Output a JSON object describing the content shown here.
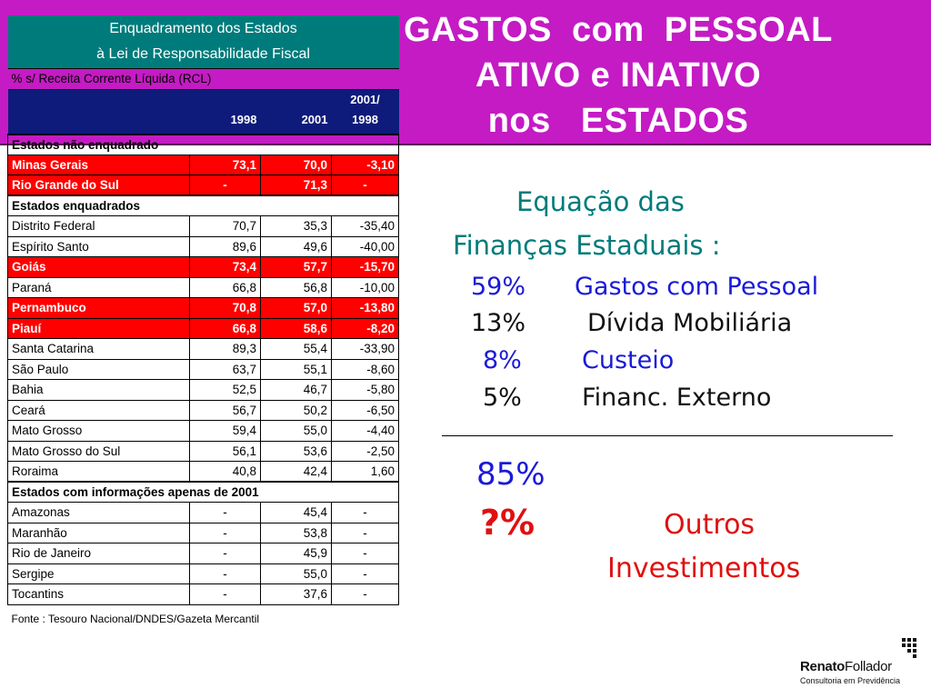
{
  "banner": {
    "line1": "GASTOS  com  PESSOAL",
    "line2": "ATIVO e INATIVO",
    "line3": "nos   ESTADOS"
  },
  "table": {
    "title1": "Enquadramento dos Estados",
    "title2": "à Lei de Responsabilidade Fiscal",
    "subtitle": "%  s/ Receita Corrente Líquida (RCL)",
    "col_1998": "1998",
    "col_2001": "2001",
    "col_var_top": "2001/",
    "col_var_bottom": "1998",
    "sections": [
      {
        "title": "Estados não enquadrado",
        "rows": [
          {
            "state": "Minas Gerais",
            "v1998": "73,1",
            "v2001": "70,0",
            "var": "-3,10",
            "highlight": true
          },
          {
            "state": "Rio Grande do Sul",
            "v1998": "-",
            "v2001": "71,3",
            "var": "-",
            "highlight": true
          }
        ]
      },
      {
        "title": "Estados enquadrados",
        "rows": [
          {
            "state": "Distrito Federal",
            "v1998": "70,7",
            "v2001": "35,3",
            "var": "-35,40",
            "highlight": false
          },
          {
            "state": "Espírito Santo",
            "v1998": "89,6",
            "v2001": "49,6",
            "var": "-40,00",
            "highlight": false
          },
          {
            "state": "Goiás",
            "v1998": "73,4",
            "v2001": "57,7",
            "var": "-15,70",
            "highlight": true
          },
          {
            "state": "Paraná",
            "v1998": "66,8",
            "v2001": "56,8",
            "var": "-10,00",
            "highlight": false
          },
          {
            "state": "Pernambuco",
            "v1998": "70,8",
            "v2001": "57,0",
            "var": "-13,80",
            "highlight": true
          },
          {
            "state": "Piauí",
            "v1998": "66,8",
            "v2001": "58,6",
            "var": "-8,20",
            "highlight": true
          },
          {
            "state": "Santa Catarina",
            "v1998": "89,3",
            "v2001": "55,4",
            "var": "-33,90",
            "highlight": false
          },
          {
            "state": "São Paulo",
            "v1998": "63,7",
            "v2001": "55,1",
            "var": "-8,60",
            "highlight": false
          },
          {
            "state": "Bahia",
            "v1998": "52,5",
            "v2001": "46,7",
            "var": "-5,80",
            "highlight": false
          },
          {
            "state": "Ceará",
            "v1998": "56,7",
            "v2001": "50,2",
            "var": "-6,50",
            "highlight": false
          },
          {
            "state": "Mato Grosso",
            "v1998": "59,4",
            "v2001": "55,0",
            "var": "-4,40",
            "highlight": false
          },
          {
            "state": "Mato Grosso do Sul",
            "v1998": "56,1",
            "v2001": "53,6",
            "var": "-2,50",
            "highlight": false
          },
          {
            "state": "Roraima",
            "v1998": "40,8",
            "v2001": "42,4",
            "var": "1,60",
            "highlight": false
          }
        ]
      },
      {
        "title": "Estados com informações apenas de 2001",
        "rows": [
          {
            "state": "Amazonas",
            "v1998": "-",
            "v2001": "45,4",
            "var": "-",
            "highlight": false
          },
          {
            "state": "Maranhão",
            "v1998": "-",
            "v2001": "53,8",
            "var": "-",
            "highlight": false
          },
          {
            "state": "Rio de Janeiro",
            "v1998": "-",
            "v2001": "45,9",
            "var": "-",
            "highlight": false
          },
          {
            "state": "Sergipe",
            "v1998": "-",
            "v2001": "55,0",
            "var": "-",
            "highlight": false
          },
          {
            "state": "Tocantins",
            "v1998": "-",
            "v2001": "37,6",
            "var": "-",
            "highlight": false
          }
        ]
      }
    ],
    "source": "Fonte : Tesouro Nacional/DNDES/Gazeta Mercantil"
  },
  "equation": {
    "title1": "Equação  das",
    "title2": "Finanças  Estaduais  :",
    "items": [
      {
        "pct": "59%",
        "label": "Gastos com Pessoal"
      },
      {
        "pct": "13%",
        "label": "Dívida Mobiliária"
      },
      {
        "pct": "8%",
        "label": "Custeio"
      },
      {
        "pct": "5%",
        "label": "Financ. Externo"
      }
    ],
    "total": "85%",
    "unknown": "?%",
    "others1": "Outros",
    "others2": "Investimentos"
  },
  "logo": {
    "name_bold": "Renato",
    "name_rest": "Follador",
    "tagline": "Consultoria em Previdência"
  },
  "colors": {
    "banner": "#c41bc4",
    "table_title": "#007b7b",
    "table_header": "#0f1b7a",
    "highlight": "#ff0000",
    "equation_title": "#007b7b",
    "blue_text": "#1a1ad8",
    "red_text": "#e01010"
  }
}
